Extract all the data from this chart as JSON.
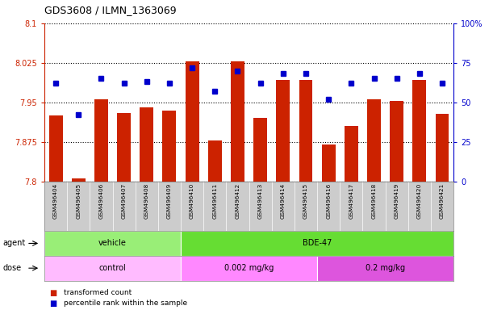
{
  "title": "GDS3608 / ILMN_1363069",
  "samples": [
    "GSM496404",
    "GSM496405",
    "GSM496406",
    "GSM496407",
    "GSM496408",
    "GSM496409",
    "GSM496410",
    "GSM496411",
    "GSM496412",
    "GSM496413",
    "GSM496414",
    "GSM496415",
    "GSM496416",
    "GSM496417",
    "GSM496418",
    "GSM496419",
    "GSM496420",
    "GSM496421"
  ],
  "bar_values": [
    7.925,
    7.805,
    7.955,
    7.93,
    7.94,
    7.935,
    8.028,
    7.878,
    8.028,
    7.92,
    7.993,
    7.993,
    7.87,
    7.905,
    7.955,
    7.953,
    7.993,
    7.928
  ],
  "dot_values": [
    62,
    42,
    65,
    62,
    63,
    62,
    72,
    57,
    70,
    62,
    68,
    68,
    52,
    62,
    65,
    65,
    68,
    62
  ],
  "ylim_left": [
    7.8,
    8.1
  ],
  "ylim_right": [
    0,
    100
  ],
  "yticks_left": [
    7.8,
    7.875,
    7.95,
    8.025,
    8.1
  ],
  "yticks_right": [
    0,
    25,
    50,
    75,
    100
  ],
  "ytick_labels_left": [
    "7.8",
    "7.875",
    "7.95",
    "8.025",
    "8.1"
  ],
  "ytick_labels_right": [
    "0",
    "25",
    "50",
    "75",
    "100%"
  ],
  "bar_color": "#cc2200",
  "dot_color": "#0000cc",
  "bar_bottom": 7.8,
  "agent_groups": [
    {
      "label": "vehicle",
      "start": 0,
      "end": 6,
      "color": "#99ee77"
    },
    {
      "label": "BDE-47",
      "start": 6,
      "end": 18,
      "color": "#66dd33"
    }
  ],
  "dose_groups": [
    {
      "label": "control",
      "start": 0,
      "end": 6,
      "color": "#ffbbff"
    },
    {
      "label": "0.002 mg/kg",
      "start": 6,
      "end": 12,
      "color": "#ff88ff"
    },
    {
      "label": "0.2 mg/kg",
      "start": 12,
      "end": 18,
      "color": "#dd55dd"
    }
  ],
  "grid_color": "#000000",
  "grid_linestyle": "dotted",
  "grid_linewidth": 0.8,
  "tick_color_left": "#cc2200",
  "tick_color_right": "#0000cc",
  "label_color_left": "#cc2200",
  "label_color_right": "#0000cc",
  "agent_row_label": "agent",
  "dose_row_label": "dose",
  "legend_items": [
    {
      "color": "#cc2200",
      "label": "transformed count"
    },
    {
      "color": "#0000cc",
      "label": "percentile rank within the sample"
    }
  ],
  "sample_bg_color": "#cccccc",
  "plot_bg": "#ffffff"
}
